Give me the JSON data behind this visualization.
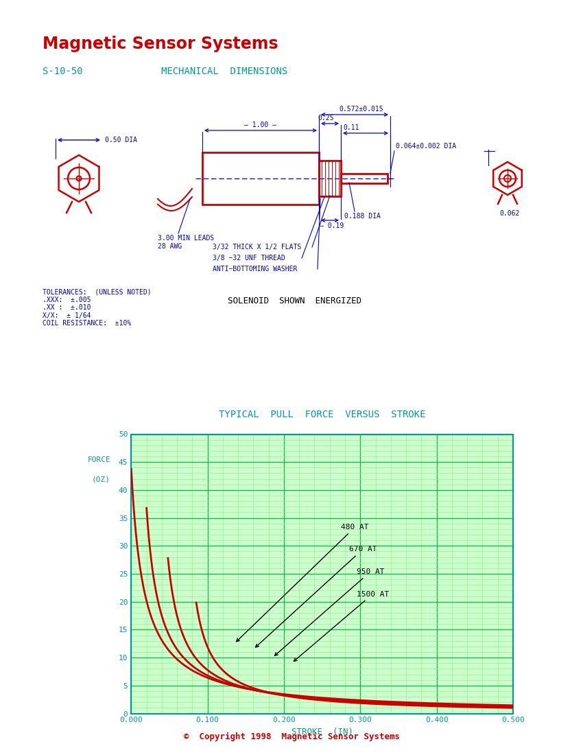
{
  "title_company": "Magnetic Sensor Systems",
  "title_color": "#FF0000",
  "subtitle_part": "S-10-50",
  "subtitle_section": "MECHANICAL  DIMENSIONS",
  "subtitle_color": "#009999",
  "dim_color": "#0000CC",
  "red_color": "#CC0000",
  "teal_color": "#009999",
  "black_color": "#000000",
  "bg_color": "#FFFFFF",
  "graph_bg": "#CCFFCC",
  "graph_grid_major": "#00BB44",
  "graph_grid_minor": "#88EE88",
  "graph_border": "#009999",
  "graph_title": "TYPICAL  PULL  FORCE  VERSUS  STROKE",
  "graph_xlabel": "STROKE  (IN)",
  "graph_ylabel_line1": "FORCE",
  "graph_ylabel_line2": "(OZ)",
  "tolerances_text": "TOLERANCES:  (UNLESS NOTED)\n.XXX:  ±.005\n.XX :  ±.010\nX/X:  ± 1/64\nCOIL RESISTANCE:  ±10%",
  "solenoid_shown": "SOLENOID  SHOWN  ENERGIZED",
  "copyright": "©  Copyright 1998  Magnetic Sensor Systems"
}
